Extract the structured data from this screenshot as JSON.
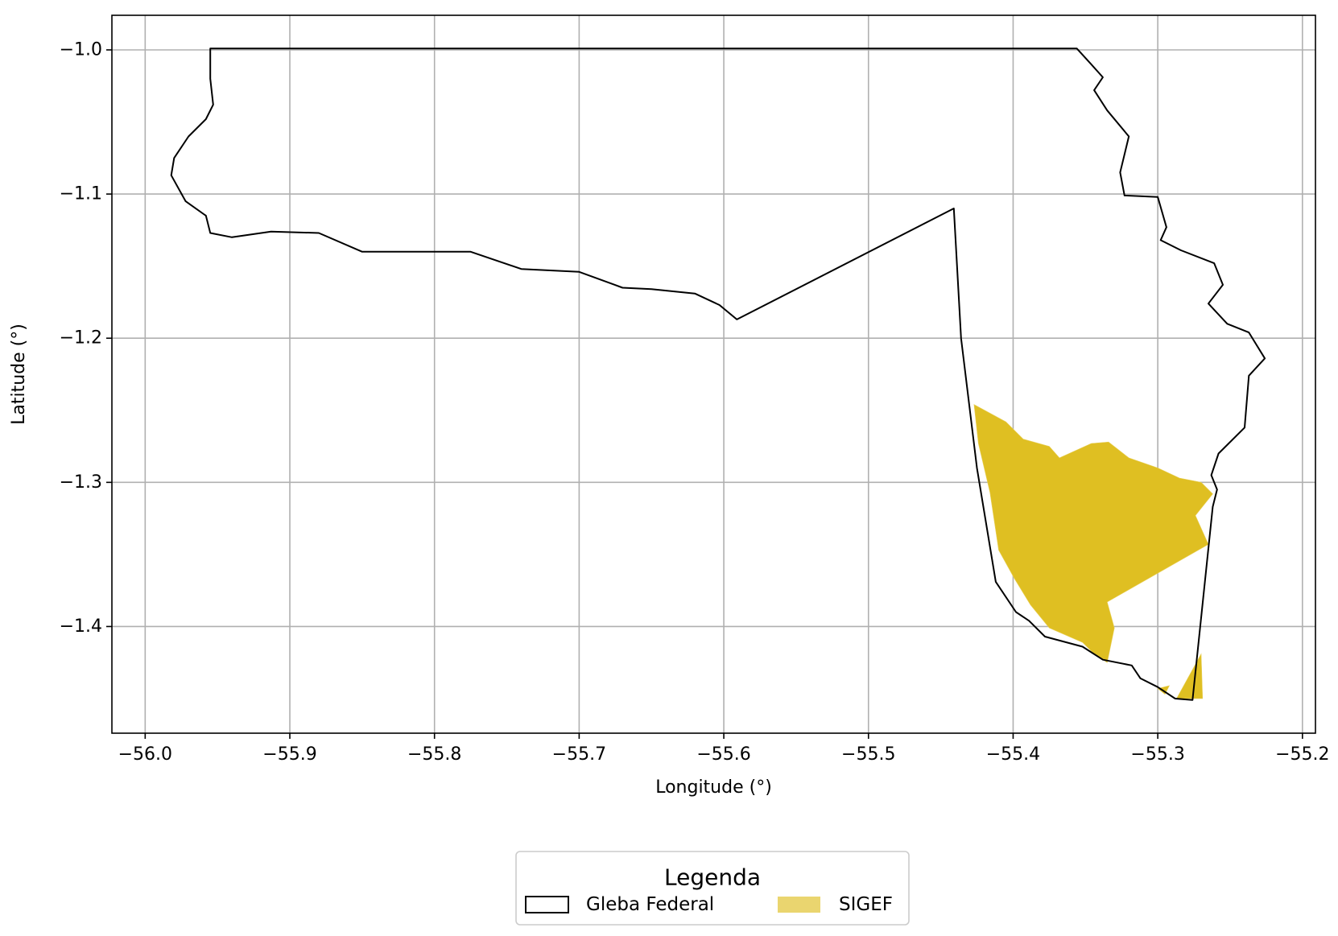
{
  "chart_data": {
    "type": "map",
    "xlabel": "Longitude (°)",
    "ylabel": "Latitude (°)",
    "xlim": [
      -56.023,
      -55.191
    ],
    "ylim": [
      -1.474,
      -0.976
    ],
    "xticks": [
      -56.0,
      -55.9,
      -55.8,
      -55.7,
      -55.6,
      -55.5,
      -55.4,
      -55.3,
      -55.2
    ],
    "xtick_labels": [
      "−56.0",
      "−55.9",
      "−55.8",
      "−55.7",
      "−55.6",
      "−55.5",
      "−55.4",
      "−55.3",
      "−55.2"
    ],
    "yticks": [
      -1.0,
      -1.1,
      -1.2,
      -1.3,
      -1.4
    ],
    "ytick_labels": [
      "−1.0",
      "−1.1",
      "−1.2",
      "−1.3",
      "−1.4"
    ],
    "grid": true,
    "legend": {
      "title": "Legenda",
      "placement": "bottom-center",
      "entries": [
        {
          "label": "Gleba Federal",
          "style": "outline"
        },
        {
          "label": "SIGEF",
          "style": "fill"
        }
      ]
    },
    "layers": [
      {
        "name": "Gleba Federal",
        "kind": "polygon-outline",
        "color": "#000000",
        "coordinates": [
          [
            -55.955,
            -0.999
          ],
          [
            -55.356,
            -0.999
          ],
          [
            -55.346,
            -1.01
          ],
          [
            -55.338,
            -1.019
          ],
          [
            -55.344,
            -1.028
          ],
          [
            -55.335,
            -1.042
          ],
          [
            -55.32,
            -1.06
          ],
          [
            -55.326,
            -1.085
          ],
          [
            -55.323,
            -1.101
          ],
          [
            -55.3,
            -1.102
          ],
          [
            -55.294,
            -1.123
          ],
          [
            -55.298,
            -1.132
          ],
          [
            -55.284,
            -1.139
          ],
          [
            -55.261,
            -1.148
          ],
          [
            -55.255,
            -1.163
          ],
          [
            -55.265,
            -1.176
          ],
          [
            -55.252,
            -1.19
          ],
          [
            -55.237,
            -1.196
          ],
          [
            -55.226,
            -1.214
          ],
          [
            -55.237,
            -1.226
          ],
          [
            -55.24,
            -1.262
          ],
          [
            -55.258,
            -1.28
          ],
          [
            -55.263,
            -1.295
          ],
          [
            -55.259,
            -1.305
          ],
          [
            -55.262,
            -1.317
          ],
          [
            -55.276,
            -1.451
          ],
          [
            -55.288,
            -1.45
          ],
          [
            -55.3,
            -1.442
          ],
          [
            -55.312,
            -1.436
          ],
          [
            -55.318,
            -1.427
          ],
          [
            -55.338,
            -1.423
          ],
          [
            -55.352,
            -1.414
          ],
          [
            -55.378,
            -1.407
          ],
          [
            -55.389,
            -1.396
          ],
          [
            -55.398,
            -1.39
          ],
          [
            -55.412,
            -1.369
          ],
          [
            -55.425,
            -1.29
          ],
          [
            -55.436,
            -1.2
          ],
          [
            -55.441,
            -1.11
          ],
          [
            -55.591,
            -1.187
          ],
          [
            -55.603,
            -1.177
          ],
          [
            -55.62,
            -1.169
          ],
          [
            -55.65,
            -1.166
          ],
          [
            -55.67,
            -1.165
          ],
          [
            -55.7,
            -1.154
          ],
          [
            -55.74,
            -1.152
          ],
          [
            -55.775,
            -1.14
          ],
          [
            -55.815,
            -1.14
          ],
          [
            -55.85,
            -1.14
          ],
          [
            -55.88,
            -1.127
          ],
          [
            -55.913,
            -1.126
          ],
          [
            -55.94,
            -1.13
          ],
          [
            -55.955,
            -1.127
          ],
          [
            -55.958,
            -1.115
          ],
          [
            -55.972,
            -1.105
          ],
          [
            -55.982,
            -1.087
          ],
          [
            -55.98,
            -1.075
          ],
          [
            -55.97,
            -1.06
          ],
          [
            -55.958,
            -1.048
          ],
          [
            -55.953,
            -1.038
          ],
          [
            -55.955,
            -1.02
          ],
          [
            -55.955,
            -0.999
          ]
        ]
      },
      {
        "name": "SIGEF",
        "kind": "polygon-fill",
        "color": "#dfbf22",
        "coordinates": [
          [
            -55.427,
            -1.246
          ],
          [
            -55.405,
            -1.258
          ],
          [
            -55.393,
            -1.27
          ],
          [
            -55.375,
            -1.275
          ],
          [
            -55.368,
            -1.283
          ],
          [
            -55.346,
            -1.273
          ],
          [
            -55.334,
            -1.272
          ],
          [
            -55.32,
            -1.283
          ],
          [
            -55.3,
            -1.29
          ],
          [
            -55.285,
            -1.297
          ],
          [
            -55.27,
            -1.3
          ],
          [
            -55.262,
            -1.308
          ],
          [
            -55.274,
            -1.323
          ],
          [
            -55.265,
            -1.343
          ],
          [
            -55.335,
            -1.383
          ],
          [
            -55.33,
            -1.401
          ],
          [
            -55.335,
            -1.425
          ],
          [
            -55.345,
            -1.418
          ],
          [
            -55.352,
            -1.411
          ],
          [
            -55.375,
            -1.401
          ],
          [
            -55.388,
            -1.385
          ],
          [
            -55.399,
            -1.367
          ],
          [
            -55.41,
            -1.347
          ],
          [
            -55.416,
            -1.307
          ],
          [
            -55.424,
            -1.273
          ]
        ]
      },
      {
        "name": "SIGEF",
        "kind": "polygon-fill",
        "color": "#dfbf22",
        "coordinates": [
          [
            -55.287,
            -1.45
          ],
          [
            -55.27,
            -1.419
          ],
          [
            -55.269,
            -1.45
          ]
        ]
      },
      {
        "name": "SIGEF",
        "kind": "polygon-fill",
        "color": "#dfbf22",
        "coordinates": [
          [
            -55.3,
            -1.443
          ],
          [
            -55.292,
            -1.441
          ],
          [
            -55.295,
            -1.447
          ]
        ]
      }
    ]
  }
}
